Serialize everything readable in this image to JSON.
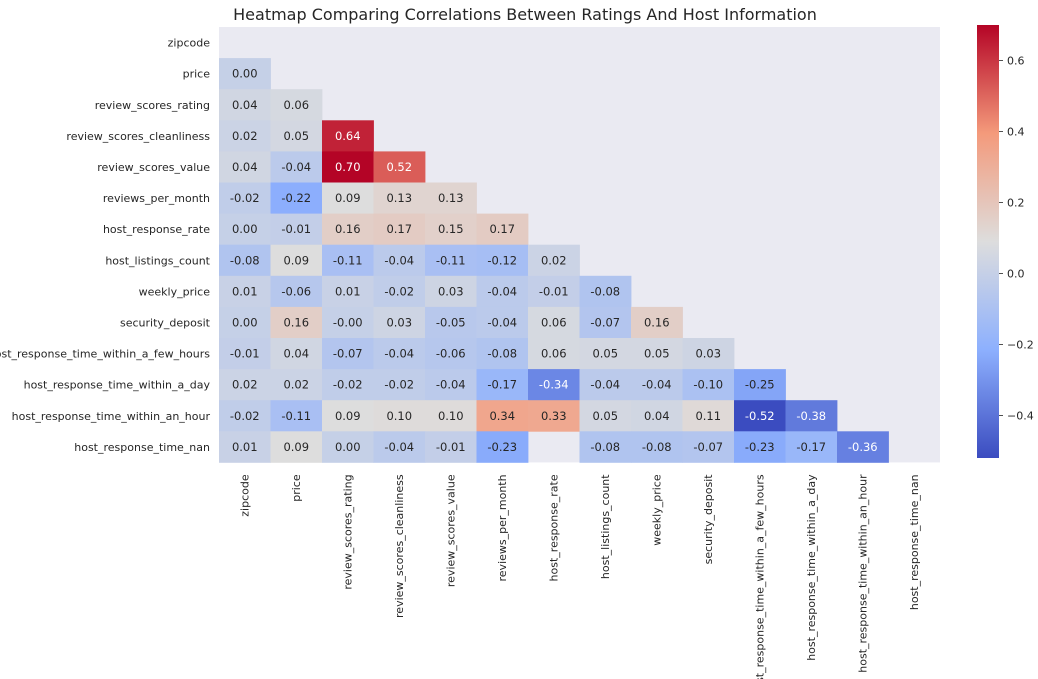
{
  "chart_data": {
    "type": "heatmap",
    "title": "Heatmap Comparing Correlations Between Ratings And Host Information",
    "xlabel": "",
    "ylabel": "",
    "rows": [
      "zipcode",
      "price",
      "review_scores_rating",
      "review_scores_cleanliness",
      "review_scores_value",
      "reviews_per_month",
      "host_response_rate",
      "host_listings_count",
      "weekly_price",
      "security_deposit",
      "host_response_time_within_a_few_hours",
      "host_response_time_within_a_day",
      "host_response_time_within_an_hour",
      "host_response_time_nan"
    ],
    "columns": [
      "zipcode",
      "price",
      "review_scores_rating",
      "review_scores_cleanliness",
      "review_scores_value",
      "reviews_per_month",
      "host_response_rate",
      "host_listings_count",
      "weekly_price",
      "security_deposit",
      "host_response_time_within_a_few_hours",
      "host_response_time_within_a_day",
      "host_response_time_within_an_hour",
      "host_response_time_nan"
    ],
    "mask": "upper triangle including diagonal",
    "values": [
      [],
      [
        "0.00"
      ],
      [
        "0.04",
        "0.06"
      ],
      [
        "0.02",
        "0.05",
        "0.64"
      ],
      [
        "0.04",
        "-0.04",
        "0.70",
        "0.52"
      ],
      [
        "-0.02",
        "-0.22",
        "0.09",
        "0.13",
        "0.13"
      ],
      [
        "0.00",
        "-0.01",
        "0.16",
        "0.17",
        "0.15",
        "0.17"
      ],
      [
        "-0.08",
        "0.09",
        "-0.11",
        "-0.04",
        "-0.11",
        "-0.12",
        "0.02"
      ],
      [
        "0.01",
        "-0.06",
        "0.01",
        "-0.02",
        "0.03",
        "-0.04",
        "-0.01",
        "-0.08"
      ],
      [
        "0.00",
        "0.16",
        "-0.00",
        "0.03",
        "-0.05",
        "-0.04",
        "0.06",
        "-0.07",
        "0.16"
      ],
      [
        "-0.01",
        "0.04",
        "-0.07",
        "-0.04",
        "-0.06",
        "-0.08",
        "0.06",
        "0.05",
        "0.05",
        "0.03"
      ],
      [
        "0.02",
        "0.02",
        "-0.02",
        "-0.02",
        "-0.04",
        "-0.17",
        "-0.34",
        "-0.04",
        "-0.04",
        "-0.10",
        "-0.25"
      ],
      [
        "-0.02",
        "-0.11",
        "0.09",
        "0.10",
        "0.10",
        "0.34",
        "0.33",
        "0.05",
        "0.04",
        "0.11",
        "-0.52",
        "-0.38"
      ],
      [
        "0.01",
        "0.09",
        "0.00",
        "-0.04",
        "-0.01",
        "-0.23",
        null,
        "-0.08",
        "-0.08",
        "-0.07",
        "-0.23",
        "-0.17",
        "-0.36"
      ]
    ],
    "colormap": "coolwarm",
    "colorbar": {
      "vmin": -0.52,
      "vmax": 0.7,
      "ticks": [
        -0.4,
        -0.2,
        0.0,
        0.2,
        0.4,
        0.6
      ],
      "tick_labels": [
        "−0.4",
        "−0.2",
        "0.0",
        "0.2",
        "0.4",
        "0.6"
      ]
    },
    "background_color": "#eaeaf2",
    "grid": false,
    "legend": "colorbar right"
  }
}
